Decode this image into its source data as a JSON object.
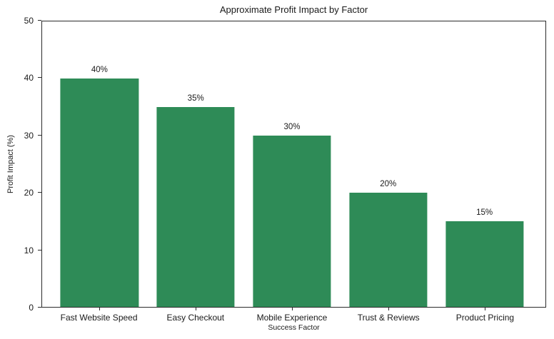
{
  "chart_data": {
    "type": "bar",
    "title": "Approximate Profit Impact by Factor",
    "xlabel": "Success Factor",
    "ylabel": "Profit Impact (%)",
    "categories": [
      "Fast Website Speed",
      "Easy Checkout",
      "Mobile Experience",
      "Trust & Reviews",
      "Product Pricing"
    ],
    "values": [
      40,
      35,
      30,
      20,
      15
    ],
    "bar_labels": [
      "40%",
      "35%",
      "30%",
      "20%",
      "15%"
    ],
    "ylim": [
      0,
      50
    ],
    "yticks": [
      0,
      10,
      20,
      30,
      40,
      50
    ],
    "bar_color": "#2e8b57",
    "axis_color": "#2b2b2b",
    "text_color": "#1a1a1a",
    "grid": false,
    "legend_position": "none"
  }
}
